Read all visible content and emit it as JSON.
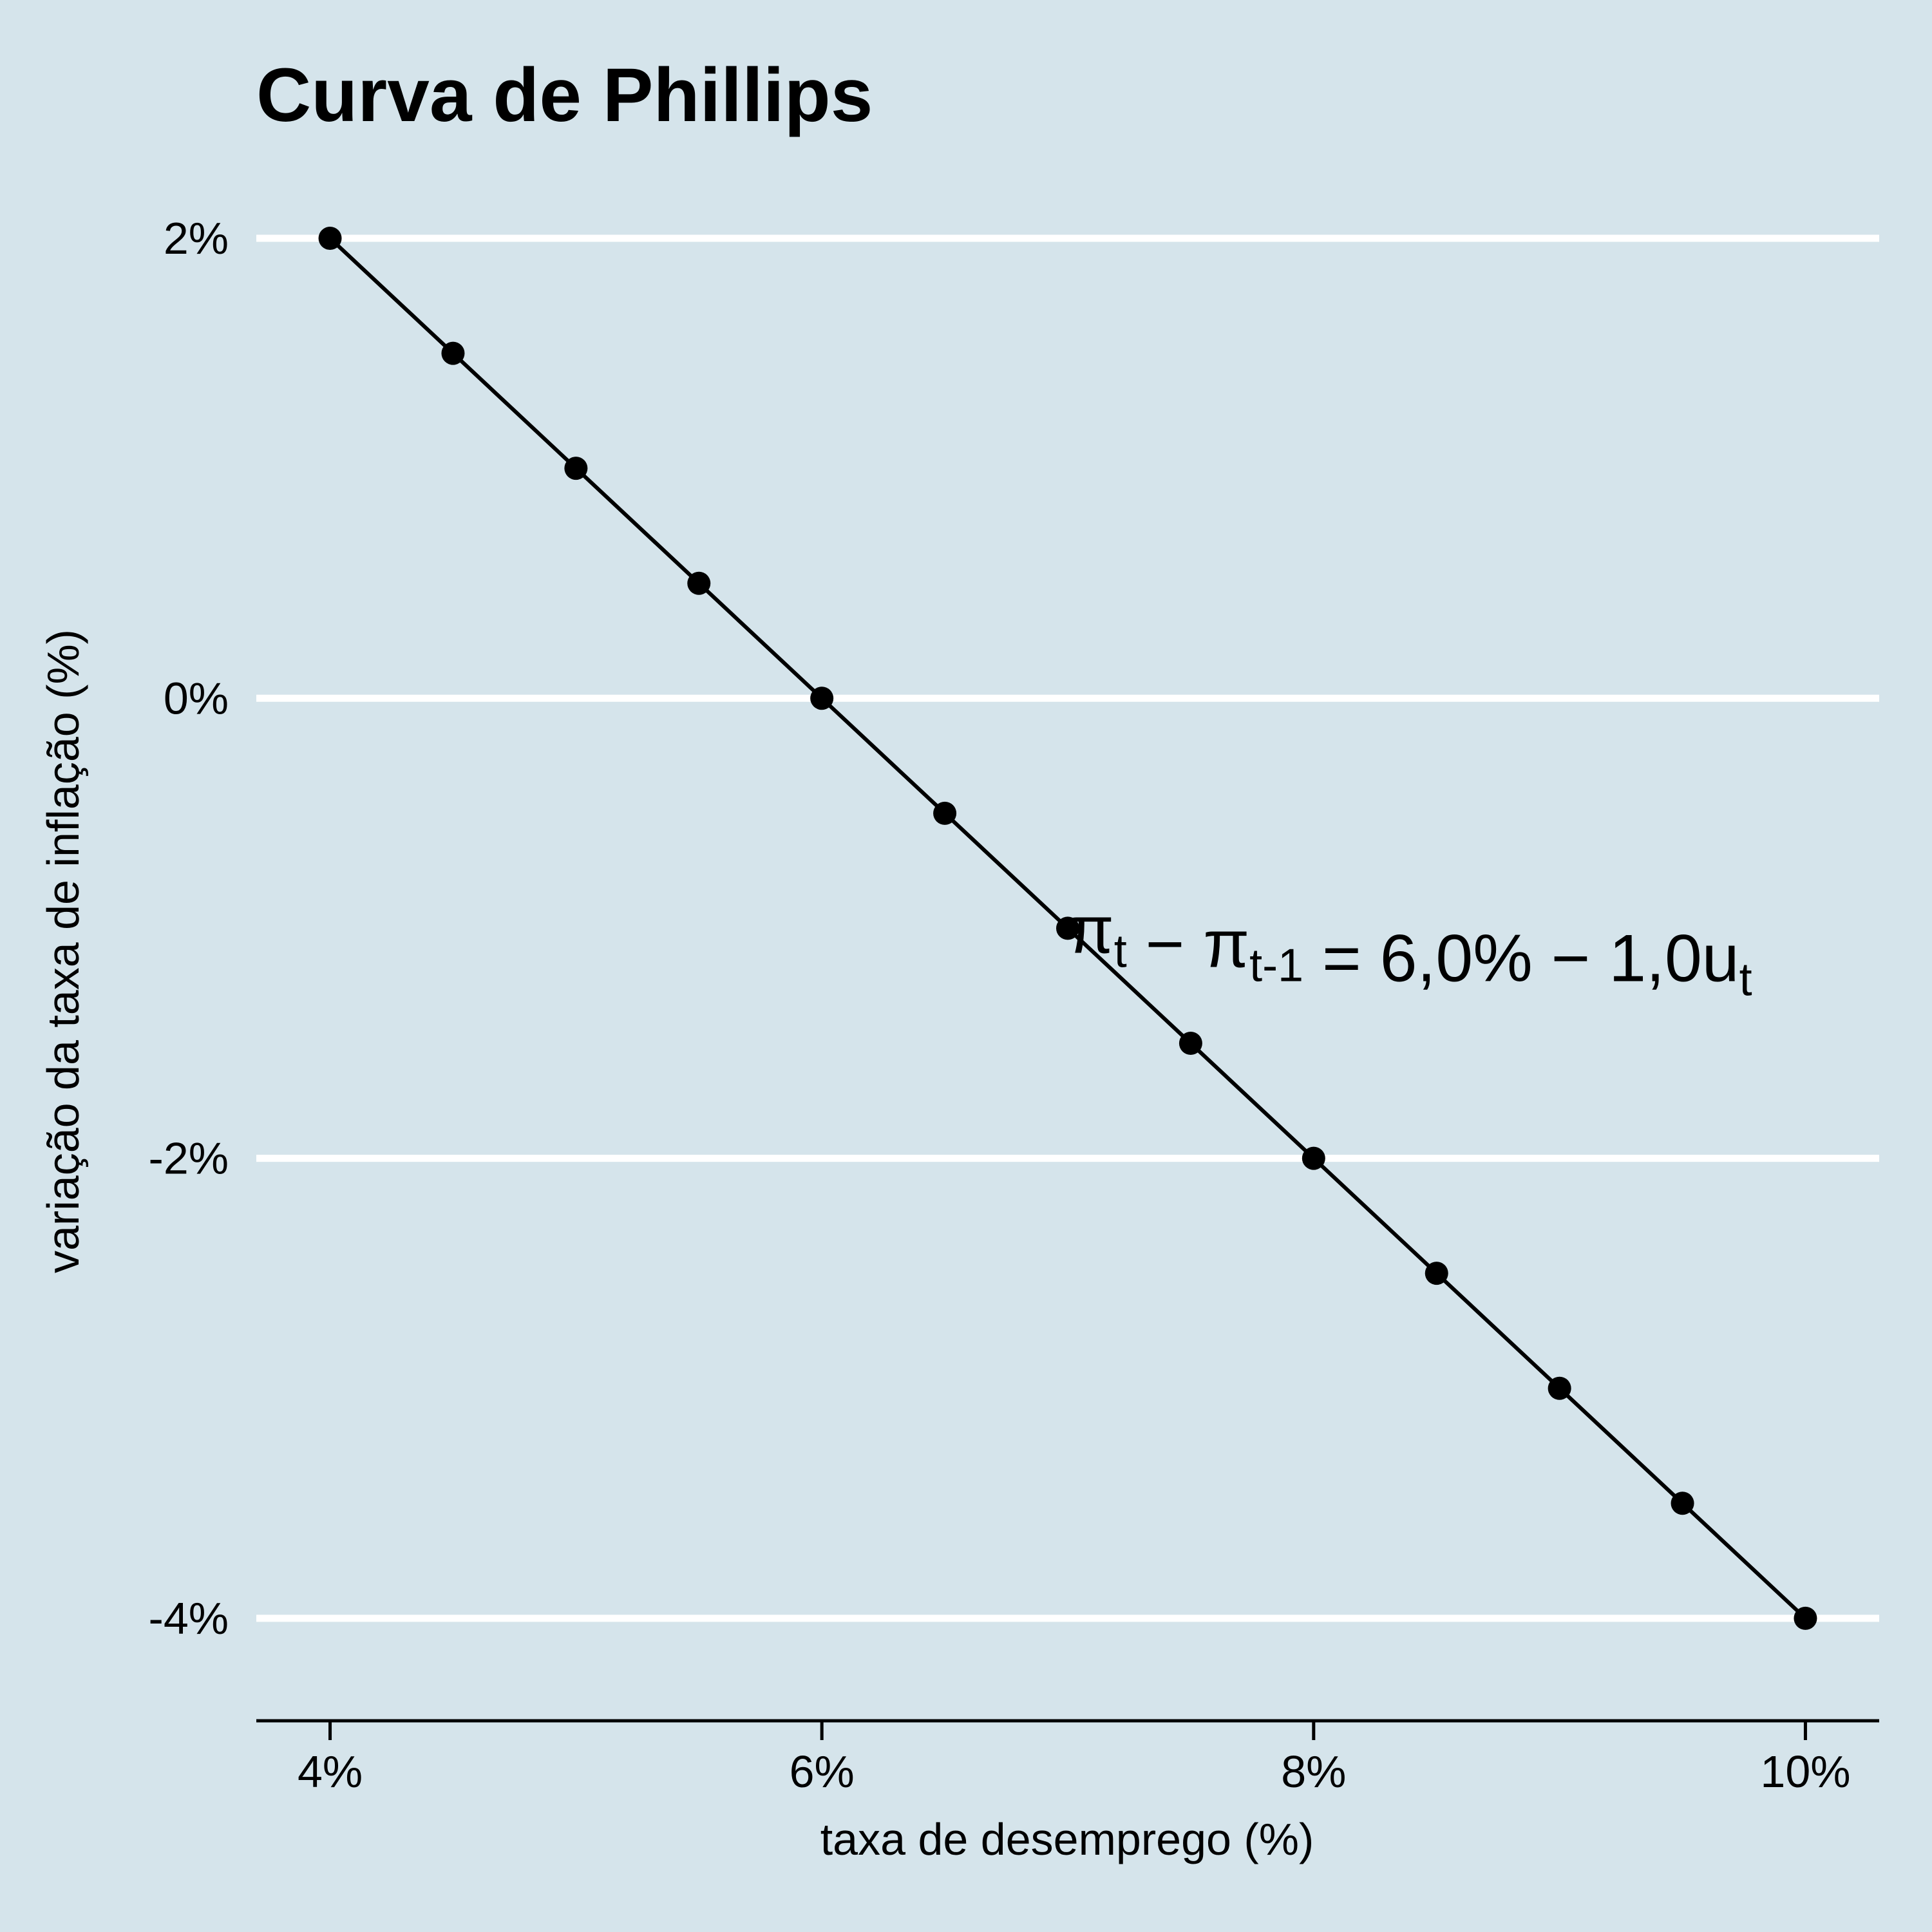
{
  "chart_data": {
    "type": "line",
    "title": "Curva de Phillips",
    "xlabel": "taxa de desemprego (%)",
    "ylabel": "variação da taxa de inflação (%)",
    "x": [
      4,
      4.5,
      5,
      5.5,
      6,
      6.5,
      7,
      7.5,
      8,
      8.5,
      9,
      9.5,
      10
    ],
    "series": [
      {
        "values": [
          2,
          1.5,
          1,
          0.5,
          0,
          -0.5,
          -1,
          -1.5,
          -2,
          -2.5,
          -3,
          -3.5,
          -4
        ]
      }
    ],
    "x_ticks": [
      4,
      6,
      8,
      10
    ],
    "x_tick_labels": [
      "4%",
      "6%",
      "8%",
      "10%"
    ],
    "y_ticks": [
      2,
      0,
      -2,
      -4
    ],
    "y_tick_labels": [
      "2%",
      "0%",
      "-2%",
      "-4%"
    ],
    "xlim": [
      3.7,
      10.3
    ],
    "ylim": [
      -4.3,
      2.0
    ],
    "grid": "horizontal",
    "markers": true,
    "annotation": {
      "x": 7,
      "y": -1,
      "parts": [
        {
          "text": "π",
          "sub": false
        },
        {
          "text": "t",
          "sub": true
        },
        {
          "text": " − ",
          "sub": false
        },
        {
          "text": "π",
          "sub": false
        },
        {
          "text": "t-1",
          "sub": true
        },
        {
          "text": " = 6,0% − 1,0u",
          "sub": false
        },
        {
          "text": "t",
          "sub": true
        }
      ]
    },
    "colors": {
      "background": "#d5e4eb",
      "grid": "#ffffff",
      "line": "#000000",
      "point": "#000000"
    }
  }
}
